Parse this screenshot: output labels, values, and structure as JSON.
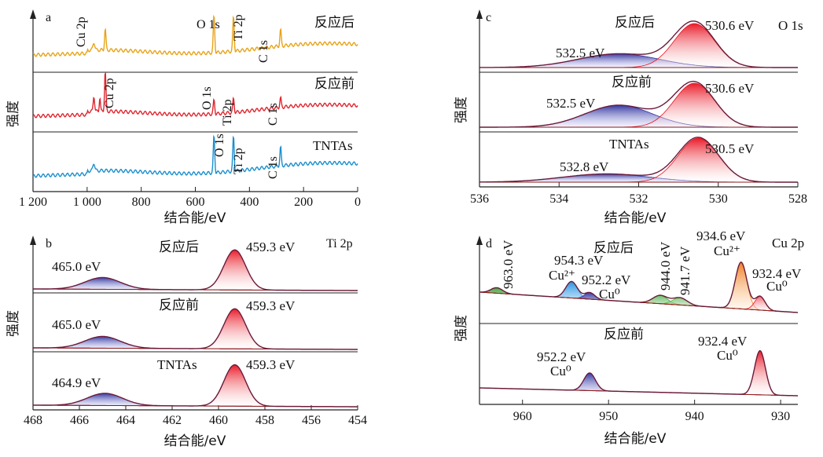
{
  "figure": {
    "ylabel": "强度",
    "xlabel": "结合能/eV"
  },
  "colors": {
    "after": "#e8a317",
    "before": "#e0252e",
    "tntas": "#1a8fce",
    "blue_fill": "#2b2f9a",
    "red_fill": "#e8101e",
    "green_fill": "#3aa53a",
    "orange_fill": "#f07a1a",
    "envelope": "#7a1a3a",
    "baseline": "#8b1a1a",
    "sep": "#222222"
  },
  "chart_data": [
    {
      "id": "a",
      "panel_label": "a",
      "type": "line",
      "title": "",
      "xlabel": "结合能/eV",
      "ylabel": "强度",
      "xlim": [
        1200,
        0
      ],
      "x_ticks": [
        "1 200",
        "1 000",
        "800",
        "600",
        "400",
        "200",
        "0"
      ],
      "x_tick_values": [
        1200,
        1000,
        800,
        600,
        400,
        200,
        0
      ],
      "series": [
        {
          "name": "反应后",
          "color": "#e8a317",
          "peaks": [
            {
              "label": "Cu 2p",
              "x": 933,
              "y": 0.45
            },
            {
              "label": "O 1s",
              "x": 531,
              "y": 0.8
            },
            {
              "label": "Ti 2p",
              "x": 459,
              "y": 0.75
            },
            {
              "label": "C 1s",
              "x": 285,
              "y": 0.35
            }
          ]
        },
        {
          "name": "反应前",
          "color": "#e0252e",
          "peaks": [
            {
              "label": "Cu 2p",
              "x": 933,
              "y": 0.85
            },
            {
              "label": "O 1s",
              "x": 531,
              "y": 0.3
            },
            {
              "label": "Ti 2p",
              "x": 459,
              "y": 0.3
            },
            {
              "label": "C 1s",
              "x": 285,
              "y": 0.2
            }
          ]
        },
        {
          "name": "TNTAs",
          "color": "#1a8fce",
          "peaks": [
            {
              "label": "O 1s",
              "x": 531,
              "y": 0.8
            },
            {
              "label": "Ti 2p",
              "x": 459,
              "y": 0.75
            },
            {
              "label": "C 1s",
              "x": 285,
              "y": 0.4
            }
          ]
        }
      ]
    },
    {
      "id": "b",
      "panel_label": "b",
      "type": "area",
      "title": "Ti 2p",
      "xlabel": "结合能/eV",
      "ylabel": "强度",
      "xlim": [
        468,
        454
      ],
      "x_ticks": [
        "468",
        "466",
        "464",
        "462",
        "460",
        "458",
        "456",
        "454"
      ],
      "x_tick_values": [
        468,
        466,
        464,
        462,
        460,
        458,
        456,
        454
      ],
      "series": [
        {
          "name": "反应后",
          "peaks": [
            {
              "label": "465.0 eV",
              "center": 465.0,
              "height": 0.25,
              "fwhm": 1.8,
              "fill": "#2b2f9a"
            },
            {
              "label": "459.3 eV",
              "center": 459.3,
              "height": 0.85,
              "fwhm": 1.1,
              "fill": "#e8101e"
            }
          ]
        },
        {
          "name": "反应前",
          "peaks": [
            {
              "label": "465.0 eV",
              "center": 465.0,
              "height": 0.25,
              "fwhm": 1.8,
              "fill": "#2b2f9a"
            },
            {
              "label": "459.3 eV",
              "center": 459.3,
              "height": 0.85,
              "fwhm": 1.1,
              "fill": "#e8101e"
            }
          ]
        },
        {
          "name": "TNTAs",
          "peaks": [
            {
              "label": "464.9 eV",
              "center": 464.9,
              "height": 0.25,
              "fwhm": 1.8,
              "fill": "#2b2f9a"
            },
            {
              "label": "459.3 eV",
              "center": 459.3,
              "height": 0.85,
              "fwhm": 1.1,
              "fill": "#e8101e"
            }
          ]
        }
      ]
    },
    {
      "id": "c",
      "panel_label": "c",
      "type": "area",
      "title": "O 1s",
      "xlabel": "结合能/eV",
      "ylabel": "强度",
      "xlim": [
        536,
        528
      ],
      "x_ticks": [
        "536",
        "534",
        "532",
        "530",
        "528"
      ],
      "x_tick_values": [
        536,
        534,
        532,
        530,
        528
      ],
      "series": [
        {
          "name": "反应后",
          "peaks": [
            {
              "label": "532.5 eV",
              "center": 532.5,
              "height": 0.25,
              "fwhm": 2.4,
              "fill": "#2b2f9a"
            },
            {
              "label": "530.6 eV",
              "center": 530.6,
              "height": 0.8,
              "fwhm": 1.2,
              "fill": "#e8101e"
            }
          ]
        },
        {
          "name": "反应前",
          "peaks": [
            {
              "label": "532.5 eV",
              "center": 532.5,
              "height": 0.4,
              "fwhm": 2.0,
              "fill": "#2b2f9a"
            },
            {
              "label": "530.6 eV",
              "center": 530.6,
              "height": 0.8,
              "fwhm": 1.2,
              "fill": "#e8101e"
            }
          ]
        },
        {
          "name": "TNTAs",
          "peaks": [
            {
              "label": "532.8 eV",
              "center": 532.8,
              "height": 0.15,
              "fwhm": 2.6,
              "fill": "#2b2f9a"
            },
            {
              "label": "530.5 eV",
              "center": 530.5,
              "height": 0.8,
              "fwhm": 1.2,
              "fill": "#e8101e"
            }
          ]
        }
      ]
    },
    {
      "id": "d",
      "panel_label": "d",
      "type": "area",
      "title": "Cu 2p",
      "xlabel": "结合能/eV",
      "ylabel": "强度",
      "xlim": [
        965,
        928
      ],
      "x_ticks": [
        "960",
        "950",
        "940",
        "930"
      ],
      "x_tick_values": [
        960,
        950,
        940,
        930
      ],
      "series": [
        {
          "name": "反应后",
          "peaks": [
            {
              "label": "963.0 eV",
              "center": 963.0,
              "height": 0.1,
              "fwhm": 1.6,
              "fill": "#3aa53a"
            },
            {
              "label": "954.3 eV",
              "sublabel": "Cu²⁺",
              "center": 954.3,
              "height": 0.3,
              "fwhm": 1.6,
              "fill": "#1a8fe0"
            },
            {
              "label": "952.2 eV",
              "sublabel": "Cu⁰",
              "center": 952.2,
              "height": 0.12,
              "fwhm": 1.4,
              "fill": "#2b2f9a"
            },
            {
              "label": "944.0 eV",
              "center": 944.0,
              "height": 0.15,
              "fwhm": 2.0,
              "fill": "#3aa53a"
            },
            {
              "label": "941.7 eV",
              "center": 941.7,
              "height": 0.13,
              "fwhm": 2.0,
              "fill": "#5dbb3a"
            },
            {
              "label": "934.6 eV",
              "sublabel": "Cu²⁺",
              "center": 934.6,
              "height": 0.85,
              "fwhm": 1.6,
              "fill": "#f07a1a"
            },
            {
              "label": "932.4 eV",
              "sublabel": "Cu⁰",
              "center": 932.4,
              "height": 0.25,
              "fwhm": 1.4,
              "fill": "#e8101e"
            }
          ]
        },
        {
          "name": "反应前",
          "peaks": [
            {
              "label": "952.2 eV",
              "sublabel": "Cu⁰",
              "center": 952.2,
              "height": 0.3,
              "fwhm": 1.6,
              "fill": "#2b2f9a"
            },
            {
              "label": "932.4 eV",
              "sublabel": "Cu⁰",
              "center": 932.4,
              "height": 0.75,
              "fwhm": 1.5,
              "fill": "#e8101e"
            }
          ]
        }
      ]
    }
  ]
}
